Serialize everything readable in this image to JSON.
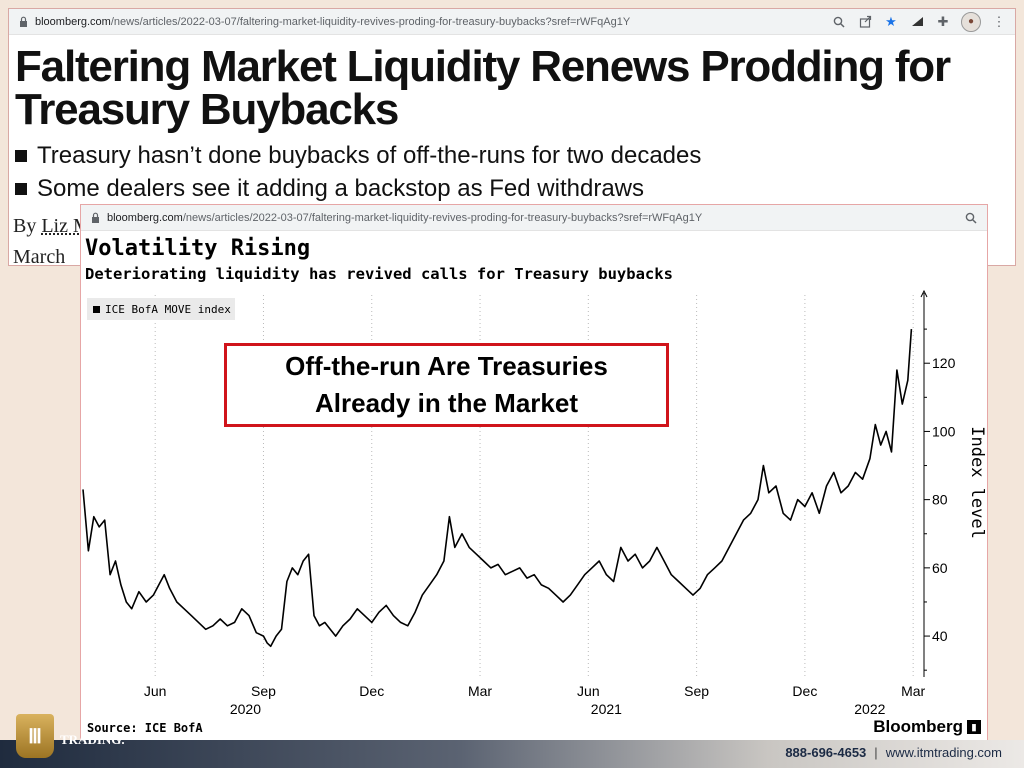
{
  "article_window": {
    "url_host": "bloomberg.com",
    "url_path": "/news/articles/2022-03-07/faltering-market-liquidity-revives-proding-for-treasury-buybacks?sref=rWFqAg1Y",
    "headline": "Faltering Market Liquidity Renews Prodding for Treasury Buybacks",
    "bullets": [
      "Treasury hasn’t done buybacks of off-the-runs for two decades",
      "Some dealers see it adding a backstop as Fed withdraws"
    ],
    "byline_prefix": "By",
    "byline_author": "Liz M",
    "date_fragment": "March"
  },
  "chart_window": {
    "url_host": "bloomberg.com",
    "url_path": "/news/articles/2022-03-07/faltering-market-liquidity-revives-proding-for-treasury-buybacks?sref=rWFqAg1Y",
    "callout_line1": "Off-the-run Are Treasuries",
    "callout_line2": "Already in the Market",
    "source": "Source: ICE BofA",
    "brand": "Bloomberg"
  },
  "chart_data": {
    "type": "line",
    "title": "Volatility Rising",
    "subtitle": "Deteriorating liquidity has revived calls for Treasury buybacks",
    "ylabel": "Index level",
    "ylim": [
      28,
      140
    ],
    "yticks": [
      40,
      60,
      80,
      100,
      120
    ],
    "month_ticks": [
      {
        "label": "Jun",
        "t": 2.0
      },
      {
        "label": "Sep",
        "t": 5.0
      },
      {
        "label": "Dec",
        "t": 8.0
      },
      {
        "label": "Mar",
        "t": 11.0
      },
      {
        "label": "Jun",
        "t": 14.0
      },
      {
        "label": "Sep",
        "t": 17.0
      },
      {
        "label": "Dec",
        "t": 20.0
      },
      {
        "label": "Mar",
        "t": 23.0
      }
    ],
    "year_ticks": [
      {
        "label": "2020",
        "t": 4.5
      },
      {
        "label": "2021",
        "t": 14.5
      },
      {
        "label": "2022",
        "t": 21.8
      }
    ],
    "legend_placement": "top-left",
    "grid": "vertical-dotted",
    "series": [
      {
        "name": "ICE BofA MOVE index",
        "color": "#000000",
        "points": [
          [
            0.0,
            83
          ],
          [
            0.15,
            65
          ],
          [
            0.3,
            75
          ],
          [
            0.45,
            72
          ],
          [
            0.6,
            74
          ],
          [
            0.75,
            58
          ],
          [
            0.9,
            62
          ],
          [
            1.05,
            55
          ],
          [
            1.2,
            50
          ],
          [
            1.35,
            48
          ],
          [
            1.55,
            53
          ],
          [
            1.75,
            50
          ],
          [
            1.95,
            52
          ],
          [
            2.1,
            55
          ],
          [
            2.25,
            58
          ],
          [
            2.4,
            54
          ],
          [
            2.6,
            50
          ],
          [
            2.8,
            48
          ],
          [
            3.0,
            46
          ],
          [
            3.2,
            44
          ],
          [
            3.4,
            42
          ],
          [
            3.6,
            43
          ],
          [
            3.8,
            45
          ],
          [
            4.0,
            43
          ],
          [
            4.2,
            44
          ],
          [
            4.4,
            48
          ],
          [
            4.6,
            46
          ],
          [
            4.8,
            41
          ],
          [
            5.0,
            40
          ],
          [
            5.1,
            38
          ],
          [
            5.2,
            37
          ],
          [
            5.35,
            40
          ],
          [
            5.5,
            42
          ],
          [
            5.65,
            56
          ],
          [
            5.8,
            60
          ],
          [
            5.95,
            58
          ],
          [
            6.1,
            62
          ],
          [
            6.25,
            64
          ],
          [
            6.4,
            46
          ],
          [
            6.55,
            43
          ],
          [
            6.7,
            44
          ],
          [
            6.85,
            42
          ],
          [
            7.0,
            40
          ],
          [
            7.2,
            43
          ],
          [
            7.4,
            45
          ],
          [
            7.6,
            48
          ],
          [
            7.8,
            46
          ],
          [
            8.0,
            44
          ],
          [
            8.2,
            47
          ],
          [
            8.4,
            49
          ],
          [
            8.6,
            46
          ],
          [
            8.8,
            44
          ],
          [
            9.0,
            43
          ],
          [
            9.2,
            47
          ],
          [
            9.4,
            52
          ],
          [
            9.6,
            55
          ],
          [
            9.8,
            58
          ],
          [
            10.0,
            62
          ],
          [
            10.15,
            75
          ],
          [
            10.3,
            66
          ],
          [
            10.5,
            70
          ],
          [
            10.7,
            66
          ],
          [
            10.9,
            64
          ],
          [
            11.1,
            62
          ],
          [
            11.3,
            60
          ],
          [
            11.5,
            61
          ],
          [
            11.7,
            58
          ],
          [
            11.9,
            59
          ],
          [
            12.1,
            60
          ],
          [
            12.3,
            57
          ],
          [
            12.5,
            58
          ],
          [
            12.7,
            55
          ],
          [
            12.9,
            54
          ],
          [
            13.1,
            52
          ],
          [
            13.3,
            50
          ],
          [
            13.5,
            52
          ],
          [
            13.7,
            55
          ],
          [
            13.9,
            58
          ],
          [
            14.1,
            60
          ],
          [
            14.3,
            62
          ],
          [
            14.5,
            58
          ],
          [
            14.7,
            56
          ],
          [
            14.9,
            66
          ],
          [
            15.1,
            62
          ],
          [
            15.3,
            64
          ],
          [
            15.5,
            60
          ],
          [
            15.7,
            62
          ],
          [
            15.9,
            66
          ],
          [
            16.1,
            62
          ],
          [
            16.3,
            58
          ],
          [
            16.5,
            56
          ],
          [
            16.7,
            54
          ],
          [
            16.9,
            52
          ],
          [
            17.1,
            54
          ],
          [
            17.3,
            58
          ],
          [
            17.5,
            60
          ],
          [
            17.7,
            62
          ],
          [
            17.9,
            66
          ],
          [
            18.1,
            70
          ],
          [
            18.3,
            74
          ],
          [
            18.5,
            76
          ],
          [
            18.7,
            80
          ],
          [
            18.85,
            90
          ],
          [
            19.0,
            82
          ],
          [
            19.2,
            84
          ],
          [
            19.4,
            76
          ],
          [
            19.6,
            74
          ],
          [
            19.8,
            80
          ],
          [
            20.0,
            78
          ],
          [
            20.2,
            82
          ],
          [
            20.4,
            76
          ],
          [
            20.6,
            84
          ],
          [
            20.8,
            88
          ],
          [
            21.0,
            82
          ],
          [
            21.2,
            84
          ],
          [
            21.4,
            88
          ],
          [
            21.6,
            86
          ],
          [
            21.8,
            92
          ],
          [
            21.95,
            102
          ],
          [
            22.1,
            96
          ],
          [
            22.25,
            100
          ],
          [
            22.4,
            94
          ],
          [
            22.55,
            118
          ],
          [
            22.7,
            108
          ],
          [
            22.85,
            115
          ],
          [
            22.95,
            130
          ]
        ]
      }
    ]
  }
}
